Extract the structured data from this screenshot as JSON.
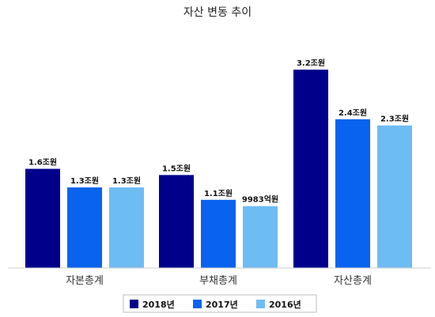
{
  "chart_data": {
    "type": "bar",
    "title": "자산 변동 추이",
    "xlabel": "",
    "ylabel": "",
    "categories": [
      "자본총계",
      "부채총계",
      "자산총계"
    ],
    "unit": "조원",
    "ylim": [
      0,
      3.4
    ],
    "grid": false,
    "legend_position": "bottom",
    "series": [
      {
        "name": "2018년",
        "color": "#00008b",
        "values": [
          1.6,
          1.5,
          3.2
        ],
        "labels": [
          "1.6조원",
          "1.5조원",
          "3.2조원"
        ]
      },
      {
        "name": "2017년",
        "color": "#0a63ee",
        "values": [
          1.3,
          1.1,
          2.4
        ],
        "labels": [
          "1.3조원",
          "1.1조원",
          "2.4조원"
        ]
      },
      {
        "name": "2016년",
        "color": "#6ebcf4",
        "values": [
          1.3,
          0.9983,
          2.3
        ],
        "labels": [
          "1.3조원",
          "9983억원",
          "2.3조원"
        ]
      }
    ]
  }
}
